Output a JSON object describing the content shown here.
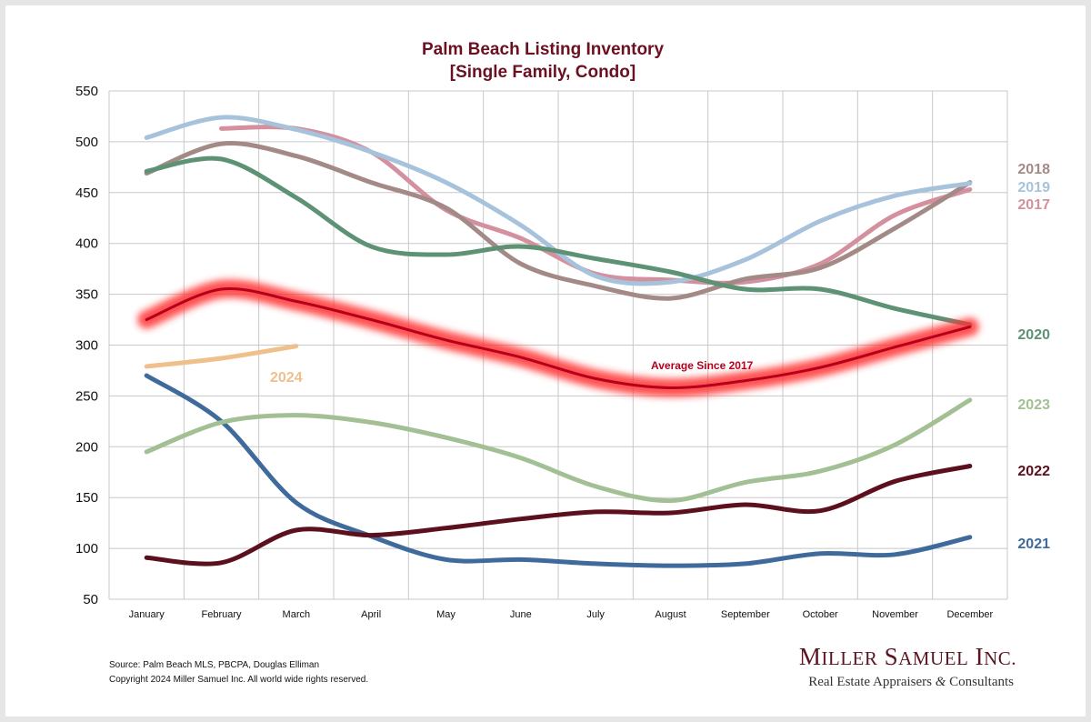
{
  "chart_data": {
    "type": "line",
    "title": "Palm Beach Listing Inventory",
    "subtitle": "[Single Family, Condo]",
    "categories": [
      "January",
      "February",
      "March",
      "April",
      "May",
      "June",
      "July",
      "August",
      "September",
      "October",
      "November",
      "December"
    ],
    "ylim": [
      50,
      550
    ],
    "yticks": [
      50,
      100,
      150,
      200,
      250,
      300,
      350,
      400,
      450,
      500,
      550
    ],
    "grid": true,
    "series": [
      {
        "name": "2017",
        "label": "2017",
        "color": "#d4909f",
        "values": [
          null,
          513,
          513,
          490,
          433,
          405,
          370,
          364,
          362,
          380,
          428,
          453
        ]
      },
      {
        "name": "2018",
        "label": "2018",
        "color": "#a48a87",
        "values": [
          469,
          498,
          486,
          460,
          435,
          380,
          358,
          346,
          365,
          376,
          415,
          460
        ]
      },
      {
        "name": "2019",
        "label": "2019",
        "color": "#a7c3dc",
        "values": [
          504,
          524,
          512,
          490,
          460,
          418,
          368,
          362,
          384,
          422,
          447,
          459
        ]
      },
      {
        "name": "2020",
        "label": "2020",
        "color": "#5e9274",
        "values": [
          471,
          483,
          445,
          397,
          389,
          397,
          385,
          372,
          355,
          355,
          336,
          320
        ]
      },
      {
        "name": "2021",
        "label": "2021",
        "color": "#3f6b9c",
        "values": [
          270,
          225,
          145,
          112,
          89,
          89,
          85,
          83,
          85,
          95,
          94,
          111
        ]
      },
      {
        "name": "2022",
        "label": "2022",
        "color": "#5c0f1d",
        "values": [
          91,
          86,
          118,
          113,
          120,
          129,
          136,
          135,
          143,
          137,
          166,
          181
        ]
      },
      {
        "name": "2023",
        "label": "2023",
        "color": "#a3bf94",
        "values": [
          195,
          224,
          231,
          224,
          209,
          189,
          161,
          147,
          165,
          176,
          202,
          246
        ]
      },
      {
        "name": "2024",
        "label": "2024",
        "color": "#efbf8c",
        "values": [
          279,
          287,
          299,
          null,
          null,
          null,
          null,
          null,
          null,
          null,
          null,
          null
        ]
      },
      {
        "name": "Average Since 2017",
        "label": "Average  Since 2017",
        "color": "#b5001d",
        "glow": "#ff3030",
        "values": [
          325,
          355,
          343,
          325,
          305,
          288,
          267,
          258,
          265,
          278,
          298,
          318
        ]
      }
    ]
  },
  "footer": {
    "source": "Source: Palm Beach MLS, PBCPA, Douglas Elliman",
    "copyright": "Copyright 2024 Miller Samuel Inc.  All world wide rights reserved."
  },
  "logo": {
    "name": "Miller Samuel Inc.",
    "tagline": "Real Estate Appraisers & Consultants"
  }
}
